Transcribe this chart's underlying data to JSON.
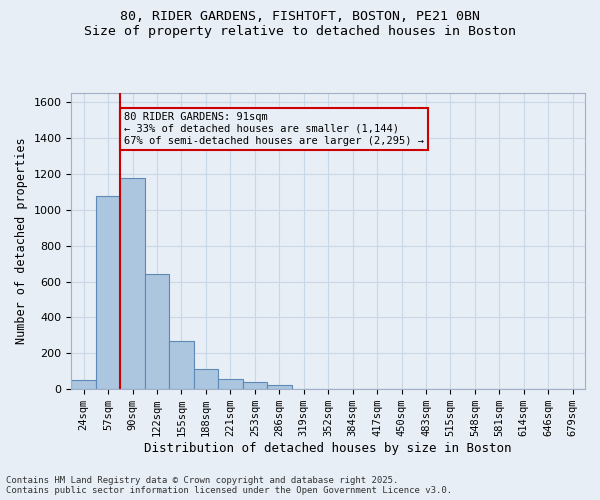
{
  "title_line1": "80, RIDER GARDENS, FISHTOFT, BOSTON, PE21 0BN",
  "title_line2": "Size of property relative to detached houses in Boston",
  "xlabel": "Distribution of detached houses by size in Boston",
  "ylabel": "Number of detached properties",
  "categories": [
    "24sqm",
    "57sqm",
    "90sqm",
    "122sqm",
    "155sqm",
    "188sqm",
    "221sqm",
    "253sqm",
    "286sqm",
    "319sqm",
    "352sqm",
    "384sqm",
    "417sqm",
    "450sqm",
    "483sqm",
    "515sqm",
    "548sqm",
    "581sqm",
    "614sqm",
    "646sqm",
    "679sqm"
  ],
  "values": [
    50,
    1075,
    1175,
    640,
    270,
    115,
    55,
    40,
    25,
    0,
    0,
    0,
    0,
    0,
    0,
    0,
    0,
    0,
    0,
    0,
    0
  ],
  "bar_color": "#adc6e0",
  "bar_edge_color": "#5a8ab5",
  "bar_edge_width": 0.8,
  "grid_color": "#c8d8e8",
  "bg_color": "#e8eef5",
  "vline_x": 2.0,
  "vline_color": "#cc0000",
  "annotation_text": "80 RIDER GARDENS: 91sqm\n← 33% of detached houses are smaller (1,144)\n67% of semi-detached houses are larger (2,295) →",
  "annotation_box_color": "#cc0000",
  "ylim": [
    0,
    1650
  ],
  "yticks": [
    0,
    200,
    400,
    600,
    800,
    1000,
    1200,
    1400,
    1600
  ],
  "footer_line1": "Contains HM Land Registry data © Crown copyright and database right 2025.",
  "footer_line2": "Contains public sector information licensed under the Open Government Licence v3.0."
}
